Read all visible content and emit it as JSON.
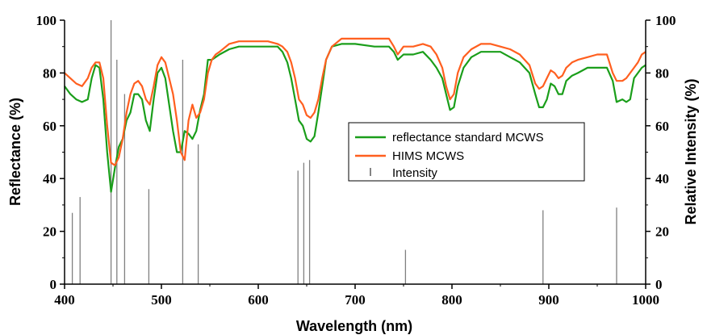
{
  "chart_data": {
    "type": "line",
    "xlabel": "Wavelength (nm)",
    "ylabel": "Reflectance (%)",
    "y2label": "Relative Intensity (%)",
    "xlim": [
      400,
      1000
    ],
    "ylim": [
      0,
      100
    ],
    "y2lim": [
      0,
      100
    ],
    "x_ticks": [
      400,
      500,
      600,
      700,
      800,
      900,
      1000
    ],
    "y_ticks": [
      0,
      20,
      40,
      60,
      80,
      100
    ],
    "y2_ticks": [
      0,
      20,
      40,
      60,
      80,
      100
    ],
    "grid": false,
    "legend_position": "center-right",
    "series": [
      {
        "name": "reflectance standard MCWS",
        "color": "#1a9e1a",
        "points": [
          [
            400,
            75
          ],
          [
            406,
            72
          ],
          [
            412,
            70
          ],
          [
            418,
            69
          ],
          [
            424,
            70
          ],
          [
            428,
            78
          ],
          [
            432,
            83
          ],
          [
            436,
            82
          ],
          [
            440,
            70
          ],
          [
            444,
            50
          ],
          [
            448,
            35
          ],
          [
            452,
            44
          ],
          [
            456,
            52
          ],
          [
            460,
            55
          ],
          [
            464,
            62
          ],
          [
            468,
            65
          ],
          [
            472,
            72
          ],
          [
            476,
            72
          ],
          [
            480,
            70
          ],
          [
            484,
            62
          ],
          [
            488,
            58
          ],
          [
            492,
            70
          ],
          [
            496,
            80
          ],
          [
            500,
            82
          ],
          [
            504,
            78
          ],
          [
            508,
            68
          ],
          [
            512,
            58
          ],
          [
            516,
            50
          ],
          [
            520,
            50
          ],
          [
            524,
            58
          ],
          [
            528,
            57
          ],
          [
            532,
            55
          ],
          [
            536,
            58
          ],
          [
            540,
            66
          ],
          [
            544,
            72
          ],
          [
            548,
            85
          ],
          [
            552,
            85
          ],
          [
            556,
            86
          ],
          [
            560,
            87
          ],
          [
            570,
            89
          ],
          [
            580,
            90
          ],
          [
            590,
            90
          ],
          [
            600,
            90
          ],
          [
            610,
            90
          ],
          [
            620,
            90
          ],
          [
            625,
            88
          ],
          [
            630,
            84
          ],
          [
            634,
            78
          ],
          [
            638,
            70
          ],
          [
            642,
            62
          ],
          [
            646,
            60
          ],
          [
            650,
            55
          ],
          [
            654,
            54
          ],
          [
            658,
            56
          ],
          [
            662,
            65
          ],
          [
            666,
            75
          ],
          [
            670,
            85
          ],
          [
            676,
            90
          ],
          [
            686,
            91
          ],
          [
            700,
            91
          ],
          [
            720,
            90
          ],
          [
            735,
            90
          ],
          [
            740,
            88
          ],
          [
            744,
            85
          ],
          [
            750,
            87
          ],
          [
            760,
            87
          ],
          [
            770,
            88
          ],
          [
            778,
            85
          ],
          [
            784,
            82
          ],
          [
            790,
            78
          ],
          [
            794,
            72
          ],
          [
            798,
            66
          ],
          [
            802,
            67
          ],
          [
            806,
            75
          ],
          [
            812,
            82
          ],
          [
            820,
            86
          ],
          [
            830,
            88
          ],
          [
            840,
            88
          ],
          [
            850,
            88
          ],
          [
            860,
            86
          ],
          [
            870,
            84
          ],
          [
            880,
            80
          ],
          [
            886,
            72
          ],
          [
            890,
            67
          ],
          [
            894,
            67
          ],
          [
            898,
            70
          ],
          [
            902,
            76
          ],
          [
            906,
            75
          ],
          [
            910,
            72
          ],
          [
            914,
            72
          ],
          [
            918,
            77
          ],
          [
            924,
            79
          ],
          [
            930,
            80
          ],
          [
            940,
            82
          ],
          [
            950,
            82
          ],
          [
            960,
            82
          ],
          [
            966,
            77
          ],
          [
            970,
            69
          ],
          [
            976,
            70
          ],
          [
            980,
            69
          ],
          [
            984,
            70
          ],
          [
            988,
            78
          ],
          [
            992,
            80
          ],
          [
            996,
            82
          ],
          [
            1000,
            83
          ]
        ]
      },
      {
        "name": "HIMS MCWS",
        "color": "#ff5f1f",
        "points": [
          [
            400,
            80
          ],
          [
            406,
            78
          ],
          [
            412,
            76
          ],
          [
            418,
            75
          ],
          [
            424,
            78
          ],
          [
            428,
            82
          ],
          [
            432,
            84
          ],
          [
            436,
            84
          ],
          [
            440,
            78
          ],
          [
            444,
            60
          ],
          [
            448,
            46
          ],
          [
            452,
            45
          ],
          [
            456,
            48
          ],
          [
            460,
            55
          ],
          [
            464,
            65
          ],
          [
            468,
            72
          ],
          [
            472,
            76
          ],
          [
            476,
            77
          ],
          [
            480,
            75
          ],
          [
            484,
            70
          ],
          [
            488,
            68
          ],
          [
            492,
            75
          ],
          [
            496,
            83
          ],
          [
            500,
            86
          ],
          [
            504,
            84
          ],
          [
            508,
            78
          ],
          [
            512,
            72
          ],
          [
            516,
            62
          ],
          [
            520,
            50
          ],
          [
            524,
            47
          ],
          [
            528,
            62
          ],
          [
            532,
            68
          ],
          [
            536,
            63
          ],
          [
            540,
            65
          ],
          [
            544,
            70
          ],
          [
            548,
            80
          ],
          [
            552,
            85
          ],
          [
            556,
            87
          ],
          [
            560,
            88
          ],
          [
            570,
            91
          ],
          [
            580,
            92
          ],
          [
            590,
            92
          ],
          [
            600,
            92
          ],
          [
            610,
            92
          ],
          [
            620,
            91
          ],
          [
            625,
            90
          ],
          [
            630,
            88
          ],
          [
            634,
            84
          ],
          [
            638,
            78
          ],
          [
            642,
            70
          ],
          [
            646,
            68
          ],
          [
            650,
            64
          ],
          [
            654,
            63
          ],
          [
            658,
            65
          ],
          [
            662,
            70
          ],
          [
            666,
            78
          ],
          [
            670,
            85
          ],
          [
            676,
            90
          ],
          [
            686,
            93
          ],
          [
            700,
            93
          ],
          [
            720,
            93
          ],
          [
            735,
            93
          ],
          [
            740,
            90
          ],
          [
            744,
            87
          ],
          [
            750,
            90
          ],
          [
            760,
            90
          ],
          [
            770,
            91
          ],
          [
            778,
            90
          ],
          [
            784,
            87
          ],
          [
            790,
            82
          ],
          [
            794,
            75
          ],
          [
            798,
            70
          ],
          [
            802,
            72
          ],
          [
            806,
            80
          ],
          [
            812,
            86
          ],
          [
            820,
            89
          ],
          [
            830,
            91
          ],
          [
            840,
            91
          ],
          [
            850,
            90
          ],
          [
            860,
            89
          ],
          [
            870,
            87
          ],
          [
            880,
            83
          ],
          [
            886,
            76
          ],
          [
            890,
            74
          ],
          [
            894,
            75
          ],
          [
            898,
            78
          ],
          [
            902,
            81
          ],
          [
            906,
            80
          ],
          [
            910,
            78
          ],
          [
            914,
            79
          ],
          [
            918,
            82
          ],
          [
            924,
            84
          ],
          [
            930,
            85
          ],
          [
            940,
            86
          ],
          [
            950,
            87
          ],
          [
            960,
            87
          ],
          [
            966,
            80
          ],
          [
            970,
            77
          ],
          [
            976,
            77
          ],
          [
            980,
            78
          ],
          [
            984,
            80
          ],
          [
            988,
            82
          ],
          [
            992,
            84
          ],
          [
            996,
            87
          ],
          [
            1000,
            88
          ]
        ]
      },
      {
        "name": "Intensity",
        "color": "#808080",
        "type": "stem",
        "axis": "right",
        "x": [
          408,
          416,
          448,
          454,
          462,
          487,
          522,
          538,
          641,
          647,
          653,
          752,
          894,
          970
        ],
        "values": [
          27,
          33,
          100,
          85,
          72,
          36,
          85,
          53,
          43,
          46,
          47,
          13,
          28,
          29
        ]
      }
    ]
  }
}
